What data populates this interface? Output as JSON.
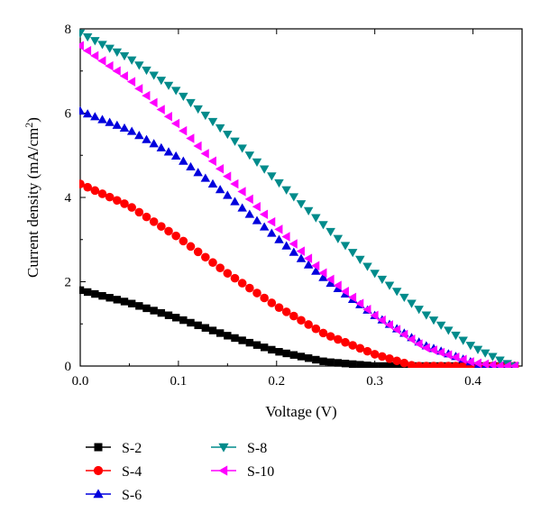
{
  "chart_data": {
    "type": "scatter",
    "title": "",
    "xlabel": "Voltage (V)",
    "ylabel_main": "Current density (mA/cm",
    "ylabel_sup": "2",
    "ylabel_close": ")",
    "xlim": [
      0,
      0.45
    ],
    "ylim": [
      0,
      8
    ],
    "xticks": [
      "0.0",
      "0.1",
      "0.2",
      "0.3",
      "0.4"
    ],
    "yticks": [
      "0",
      "2",
      "4",
      "6",
      "8"
    ],
    "grid": false,
    "legend_position": "bottom-left",
    "series": [
      {
        "name": "S-2",
        "marker": "square",
        "color": "#000000",
        "isc": 1.8,
        "voc": 0.3,
        "sample_x": [
          0,
          0.05,
          0.1,
          0.15,
          0.2,
          0.25,
          0.3
        ],
        "sample_y": [
          1.8,
          1.5,
          1.13,
          0.72,
          0.35,
          0.1,
          0.0
        ]
      },
      {
        "name": "S-4",
        "marker": "circle",
        "color": "#ff0000",
        "isc": 4.32,
        "voc": 0.34,
        "sample_x": [
          0,
          0.05,
          0.1,
          0.15,
          0.2,
          0.25,
          0.3,
          0.34
        ],
        "sample_y": [
          4.32,
          3.8,
          3.05,
          2.2,
          1.42,
          0.75,
          0.28,
          0.0
        ]
      },
      {
        "name": "S-6",
        "marker": "triangle-up",
        "color": "#0000dd",
        "isc": 6.05,
        "voc": 0.42,
        "sample_x": [
          0,
          0.05,
          0.1,
          0.15,
          0.2,
          0.25,
          0.3,
          0.35,
          0.4
        ],
        "sample_y": [
          6.05,
          5.6,
          4.95,
          4.05,
          3.05,
          2.05,
          1.2,
          0.5,
          0.08
        ]
      },
      {
        "name": "S-8",
        "marker": "triangle-down",
        "color": "#008b8b",
        "isc": 7.9,
        "voc": 0.44,
        "sample_x": [
          0,
          0.05,
          0.1,
          0.15,
          0.2,
          0.25,
          0.3,
          0.35,
          0.4,
          0.44
        ],
        "sample_y": [
          7.9,
          7.3,
          6.5,
          5.5,
          4.4,
          3.3,
          2.2,
          1.25,
          0.45,
          0.0
        ]
      },
      {
        "name": "S-10",
        "marker": "triangle-left",
        "color": "#ff00ff",
        "isc": 7.6,
        "voc": 0.43,
        "sample_x": [
          0,
          0.05,
          0.1,
          0.15,
          0.2,
          0.25,
          0.3,
          0.35,
          0.4,
          0.43
        ],
        "sample_y": [
          7.6,
          6.8,
          5.7,
          4.5,
          3.3,
          2.15,
          1.2,
          0.45,
          0.08,
          0.0
        ]
      }
    ]
  }
}
